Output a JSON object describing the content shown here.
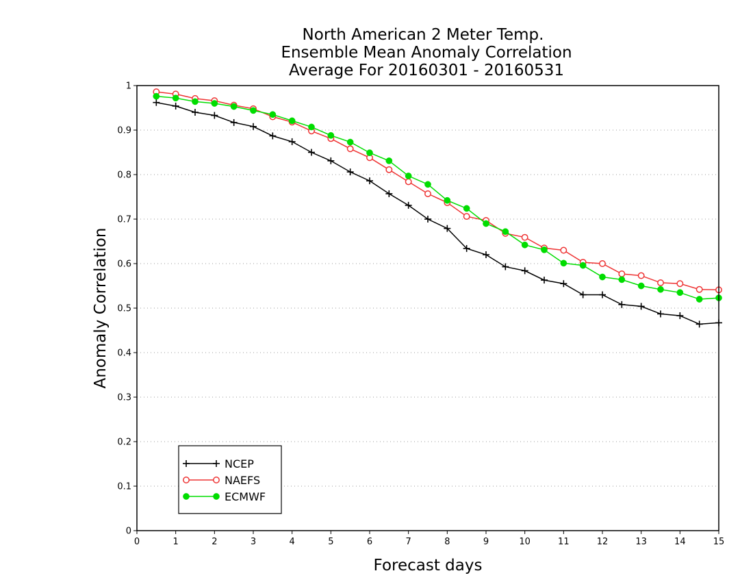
{
  "chart_data": {
    "type": "line",
    "title": [
      "North American 2 Meter Temp.",
      "Ensemble Mean Anomaly Correlation",
      "Average For 20160301 - 20160531"
    ],
    "xlabel": "Forecast days",
    "ylabel": "Anomaly Correlation",
    "xlim": [
      0,
      15
    ],
    "ylim": [
      0,
      1
    ],
    "x_ticks": [
      "0",
      "1",
      "2",
      "3",
      "4",
      "5",
      "6",
      "7",
      "8",
      "9",
      "10",
      "11",
      "12",
      "13",
      "14",
      "15"
    ],
    "y_ticks": [
      "0",
      "0.1",
      "0.2",
      "0.3",
      "0.4",
      "0.5",
      "0.6",
      "0.7",
      "0.8",
      "0.9",
      "1"
    ],
    "grid": "horizontal dotted",
    "legend_position": "bottom-left",
    "x": [
      0.5,
      1,
      1.5,
      2,
      2.5,
      3,
      3.5,
      4,
      4.5,
      5,
      5.5,
      6,
      6.5,
      7,
      7.5,
      8,
      8.5,
      9,
      9.5,
      10,
      10.5,
      11,
      11.5,
      12,
      12.5,
      13,
      13.5,
      14,
      14.5,
      15
    ],
    "series": [
      {
        "name": "NCEP",
        "color": "#000000",
        "marker": "plus",
        "values": [
          0.962,
          0.954,
          0.94,
          0.933,
          0.917,
          0.908,
          0.887,
          0.874,
          0.85,
          0.831,
          0.806,
          0.786,
          0.757,
          0.731,
          0.7,
          0.679,
          0.634,
          0.62,
          0.593,
          0.584,
          0.563,
          0.555,
          0.53,
          0.53,
          0.508,
          0.504,
          0.487,
          0.483,
          0.464,
          0.467
        ]
      },
      {
        "name": "NAEFS",
        "color": "#ee3333",
        "marker": "open-circle",
        "values": [
          0.986,
          0.981,
          0.971,
          0.966,
          0.956,
          0.948,
          0.93,
          0.918,
          0.898,
          0.881,
          0.858,
          0.838,
          0.811,
          0.784,
          0.757,
          0.737,
          0.706,
          0.697,
          0.668,
          0.659,
          0.635,
          0.63,
          0.603,
          0.6,
          0.577,
          0.573,
          0.557,
          0.555,
          0.542,
          0.541
        ]
      },
      {
        "name": "ECMWF",
        "color": "#00dd00",
        "marker": "filled-circle",
        "values": [
          0.976,
          0.972,
          0.964,
          0.96,
          0.953,
          0.944,
          0.935,
          0.921,
          0.907,
          0.888,
          0.873,
          0.849,
          0.831,
          0.797,
          0.778,
          0.742,
          0.724,
          0.69,
          0.672,
          0.642,
          0.631,
          0.601,
          0.596,
          0.57,
          0.564,
          0.55,
          0.542,
          0.535,
          0.52,
          0.523
        ]
      }
    ]
  }
}
